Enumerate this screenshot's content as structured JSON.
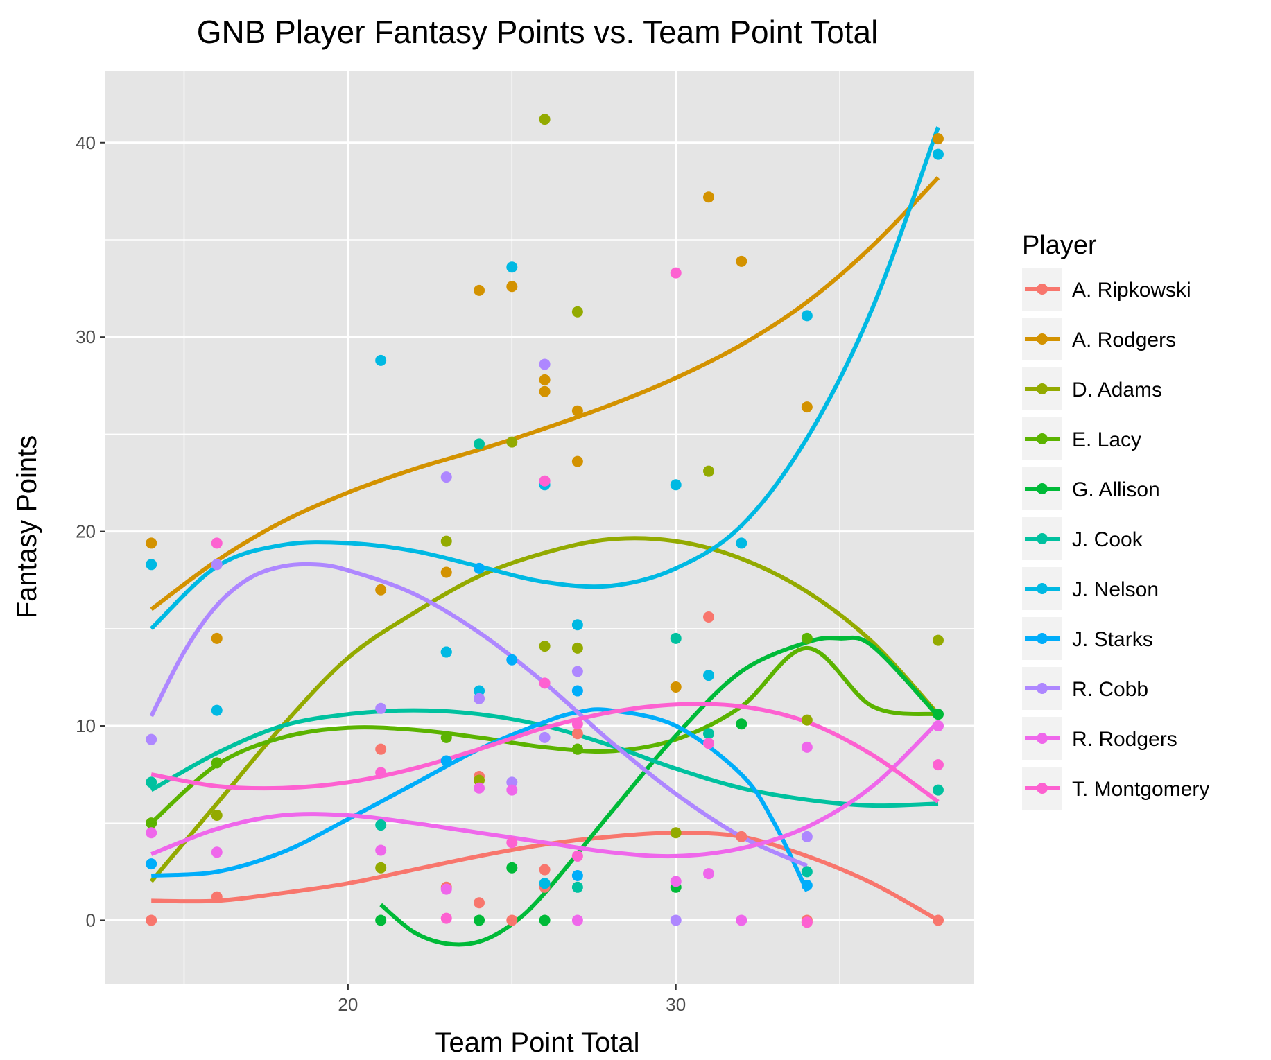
{
  "chart_data": {
    "type": "scatter",
    "title": "GNB Player Fantasy Points vs. Team Point Total",
    "xlabel": "Team Point Total",
    "ylabel": "Fantasy Points",
    "xlim": [
      12.6,
      39.1
    ],
    "ylim": [
      -3.3,
      43.7
    ],
    "xticks": [
      20,
      30
    ],
    "yticks": [
      0,
      10,
      20,
      30,
      40
    ],
    "legend_title": "Player",
    "legend_position": "right",
    "smoother": "loess",
    "panel_background": "#e5e5e5",
    "grid": true,
    "series": [
      {
        "name": "A. Ripkowski",
        "color": "#F8766D",
        "points": [
          [
            14,
            0
          ],
          [
            16,
            1.2
          ],
          [
            21,
            8.8
          ],
          [
            23,
            1.7
          ],
          [
            24,
            0.9
          ],
          [
            24,
            7.4
          ],
          [
            25,
            0
          ],
          [
            26,
            1.7
          ],
          [
            26,
            2.6
          ],
          [
            27,
            9.6
          ],
          [
            31,
            15.6
          ],
          [
            32,
            4.3
          ],
          [
            34,
            0
          ],
          [
            34,
            -0.1
          ],
          [
            38,
            0
          ]
        ],
        "curve": [
          [
            14,
            1
          ],
          [
            16,
            1.0
          ],
          [
            18,
            1.4
          ],
          [
            20,
            1.9
          ],
          [
            22,
            2.6
          ],
          [
            24,
            3.3
          ],
          [
            26,
            3.9
          ],
          [
            28,
            4.3
          ],
          [
            30,
            4.5
          ],
          [
            32,
            4.3
          ],
          [
            34,
            3.3
          ],
          [
            36,
            1.9
          ],
          [
            38,
            0
          ]
        ]
      },
      {
        "name": "A. Rodgers",
        "color": "#D39200",
        "points": [
          [
            14,
            19.4
          ],
          [
            16,
            14.5
          ],
          [
            21,
            17.0
          ],
          [
            23,
            17.9
          ],
          [
            24,
            32.4
          ],
          [
            25,
            32.6
          ],
          [
            26,
            27.8
          ],
          [
            26,
            27.2
          ],
          [
            27,
            26.2
          ],
          [
            27,
            23.6
          ],
          [
            30,
            12.0
          ],
          [
            31,
            37.2
          ],
          [
            32,
            33.9
          ],
          [
            34,
            26.4
          ],
          [
            38,
            40.2
          ]
        ],
        "curve": [
          [
            14,
            16
          ],
          [
            16,
            18.5
          ],
          [
            18,
            20.5
          ],
          [
            20,
            22
          ],
          [
            22,
            23.2
          ],
          [
            24,
            24.2
          ],
          [
            26,
            25.3
          ],
          [
            28,
            26.5
          ],
          [
            30,
            27.9
          ],
          [
            32,
            29.6
          ],
          [
            34,
            31.8
          ],
          [
            36,
            34.7
          ],
          [
            38,
            38.2
          ]
        ]
      },
      {
        "name": "D. Adams",
        "color": "#93AA00",
        "points": [
          [
            14,
            5
          ],
          [
            16,
            5.4
          ],
          [
            21,
            2.7
          ],
          [
            23,
            19.5
          ],
          [
            24,
            7.2
          ],
          [
            25,
            24.6
          ],
          [
            26,
            41.2
          ],
          [
            26,
            14.1
          ],
          [
            27,
            31.3
          ],
          [
            27,
            14.0
          ],
          [
            27,
            8.8
          ],
          [
            30,
            4.5
          ],
          [
            31,
            23.1
          ],
          [
            34,
            10.3
          ],
          [
            38,
            14.4
          ]
        ],
        "curve": [
          [
            14,
            2
          ],
          [
            16,
            6
          ],
          [
            18,
            10
          ],
          [
            20,
            13.5
          ],
          [
            22,
            15.8
          ],
          [
            24,
            17.7
          ],
          [
            26,
            18.9
          ],
          [
            28,
            19.6
          ],
          [
            30,
            19.5
          ],
          [
            32,
            18.6
          ],
          [
            34,
            16.9
          ],
          [
            36,
            14.3
          ],
          [
            38,
            10.6
          ]
        ]
      },
      {
        "name": "E. Lacy",
        "color": "#5BB300",
        "points": [
          [
            14,
            5
          ],
          [
            16,
            8.1
          ],
          [
            23,
            9.4
          ],
          [
            27,
            8.8
          ],
          [
            34,
            14.5
          ]
        ],
        "curve": [
          [
            14,
            5
          ],
          [
            16,
            8.0
          ],
          [
            18,
            9.4
          ],
          [
            20,
            9.9
          ],
          [
            22,
            9.8
          ],
          [
            24,
            9.4
          ],
          [
            26,
            8.9
          ],
          [
            28,
            8.7
          ],
          [
            30,
            9.3
          ],
          [
            32,
            11.0
          ],
          [
            34,
            14.0
          ],
          [
            36,
            11.0
          ],
          [
            38,
            10.6
          ]
        ]
      },
      {
        "name": "G. Allison",
        "color": "#00BA38",
        "points": [
          [
            21,
            0
          ],
          [
            24,
            0
          ],
          [
            25,
            2.7
          ],
          [
            26,
            0
          ],
          [
            30,
            1.7
          ],
          [
            32,
            10.1
          ],
          [
            38,
            10.6
          ]
        ],
        "curve": [
          [
            21,
            0.8
          ],
          [
            22,
            -0.6
          ],
          [
            23,
            -1.2
          ],
          [
            24,
            -1.1
          ],
          [
            25,
            -0.2
          ],
          [
            26,
            1.4
          ],
          [
            28,
            5.5
          ],
          [
            30,
            9.5
          ],
          [
            32,
            12.8
          ],
          [
            34,
            14.3
          ],
          [
            35,
            14.5
          ],
          [
            36,
            14.1
          ],
          [
            38,
            10.5
          ]
        ]
      },
      {
        "name": "J. Cook",
        "color": "#00C19F",
        "points": [
          [
            14,
            7.1
          ],
          [
            21,
            4.9
          ],
          [
            23,
            13.8
          ],
          [
            24,
            24.5
          ],
          [
            27,
            1.7
          ],
          [
            30,
            14.5
          ],
          [
            31,
            9.6
          ],
          [
            34,
            2.5
          ],
          [
            38,
            6.7
          ]
        ],
        "curve": [
          [
            14,
            6.7
          ],
          [
            16,
            8.6
          ],
          [
            18,
            10.0
          ],
          [
            20,
            10.6
          ],
          [
            22,
            10.8
          ],
          [
            24,
            10.6
          ],
          [
            26,
            10.0
          ],
          [
            28,
            9.0
          ],
          [
            30,
            7.8
          ],
          [
            32,
            6.8
          ],
          [
            34,
            6.2
          ],
          [
            36,
            5.9
          ],
          [
            38,
            6.0
          ]
        ]
      },
      {
        "name": "J. Nelson",
        "color": "#00B9E3",
        "points": [
          [
            14,
            18.3
          ],
          [
            16,
            10.8
          ],
          [
            21,
            28.8
          ],
          [
            23,
            13.8
          ],
          [
            24,
            11.8
          ],
          [
            25,
            33.6
          ],
          [
            26,
            22.4
          ],
          [
            26,
            1.9
          ],
          [
            27,
            15.2
          ],
          [
            30,
            22.4
          ],
          [
            31,
            12.6
          ],
          [
            32,
            19.4
          ],
          [
            34,
            31.1
          ],
          [
            38,
            39.4
          ]
        ],
        "curve": [
          [
            14,
            15
          ],
          [
            16,
            18.2
          ],
          [
            18,
            19.3
          ],
          [
            20,
            19.4
          ],
          [
            22,
            19.0
          ],
          [
            24,
            18.2
          ],
          [
            26,
            17.4
          ],
          [
            28,
            17.2
          ],
          [
            30,
            18.1
          ],
          [
            32,
            20.3
          ],
          [
            34,
            24.8
          ],
          [
            36,
            31.5
          ],
          [
            38,
            40.8
          ]
        ]
      },
      {
        "name": "J. Starks",
        "color": "#00ADFA",
        "points": [
          [
            14,
            2.9
          ],
          [
            23,
            8.2
          ],
          [
            24,
            18.1
          ],
          [
            25,
            13.4
          ],
          [
            27,
            11.8
          ],
          [
            27,
            2.3
          ],
          [
            34,
            1.8
          ]
        ],
        "curve": [
          [
            14,
            2.3
          ],
          [
            16,
            2.5
          ],
          [
            18,
            3.5
          ],
          [
            20,
            5.2
          ],
          [
            22,
            7.0
          ],
          [
            24,
            8.8
          ],
          [
            26,
            10.2
          ],
          [
            27,
            10.7
          ],
          [
            28,
            10.8
          ],
          [
            30,
            10.0
          ],
          [
            32,
            7.5
          ],
          [
            33,
            5.0
          ],
          [
            34,
            1.5
          ]
        ]
      },
      {
        "name": "R. Cobb",
        "color": "#AE87FF",
        "points": [
          [
            14,
            9.3
          ],
          [
            16,
            18.3
          ],
          [
            21,
            10.9
          ],
          [
            23,
            22.8
          ],
          [
            24,
            11.4
          ],
          [
            25,
            7.1
          ],
          [
            26,
            28.6
          ],
          [
            26,
            9.4
          ],
          [
            27,
            12.8
          ],
          [
            30,
            0
          ],
          [
            34,
            4.3
          ]
        ],
        "curve": [
          [
            14,
            10.5
          ],
          [
            15,
            13.8
          ],
          [
            16,
            16.2
          ],
          [
            17,
            17.6
          ],
          [
            18,
            18.2
          ],
          [
            19,
            18.3
          ],
          [
            20,
            18.0
          ],
          [
            22,
            16.8
          ],
          [
            24,
            14.8
          ],
          [
            26,
            12.2
          ],
          [
            28,
            9.2
          ],
          [
            30,
            6.5
          ],
          [
            32,
            4.3
          ],
          [
            34,
            2.8
          ]
        ]
      },
      {
        "name": "R. Rodgers",
        "color": "#EF67EB",
        "points": [
          [
            14,
            4.5
          ],
          [
            16,
            3.5
          ],
          [
            21,
            3.6
          ],
          [
            23,
            1.6
          ],
          [
            24,
            6.8
          ],
          [
            25,
            6.7
          ],
          [
            27,
            0
          ],
          [
            30,
            2.0
          ],
          [
            31,
            2.4
          ],
          [
            32,
            0
          ],
          [
            34,
            8.9
          ],
          [
            38,
            10
          ]
        ],
        "curve": [
          [
            14,
            3.4
          ],
          [
            16,
            4.7
          ],
          [
            18,
            5.4
          ],
          [
            20,
            5.4
          ],
          [
            22,
            5.0
          ],
          [
            24,
            4.5
          ],
          [
            26,
            4.0
          ],
          [
            28,
            3.5
          ],
          [
            30,
            3.3
          ],
          [
            32,
            3.7
          ],
          [
            34,
            4.8
          ],
          [
            36,
            6.9
          ],
          [
            38,
            10.2
          ]
        ]
      },
      {
        "name": "T. Montgomery",
        "color": "#FD61D1",
        "points": [
          [
            16,
            19.4
          ],
          [
            21,
            7.6
          ],
          [
            23,
            0.1
          ],
          [
            25,
            4.0
          ],
          [
            26,
            22.6
          ],
          [
            26,
            12.2
          ],
          [
            27,
            10.1
          ],
          [
            27,
            3.3
          ],
          [
            30,
            33.3
          ],
          [
            31,
            9.1
          ],
          [
            34,
            -0.1
          ],
          [
            38,
            8.0
          ]
        ],
        "curve": [
          [
            14,
            7.5
          ],
          [
            16,
            6.9
          ],
          [
            18,
            6.8
          ],
          [
            20,
            7.1
          ],
          [
            22,
            7.8
          ],
          [
            24,
            8.8
          ],
          [
            26,
            9.9
          ],
          [
            28,
            10.7
          ],
          [
            30,
            11.1
          ],
          [
            32,
            11.0
          ],
          [
            34,
            10.2
          ],
          [
            36,
            8.5
          ],
          [
            38,
            6.1
          ]
        ]
      }
    ]
  }
}
